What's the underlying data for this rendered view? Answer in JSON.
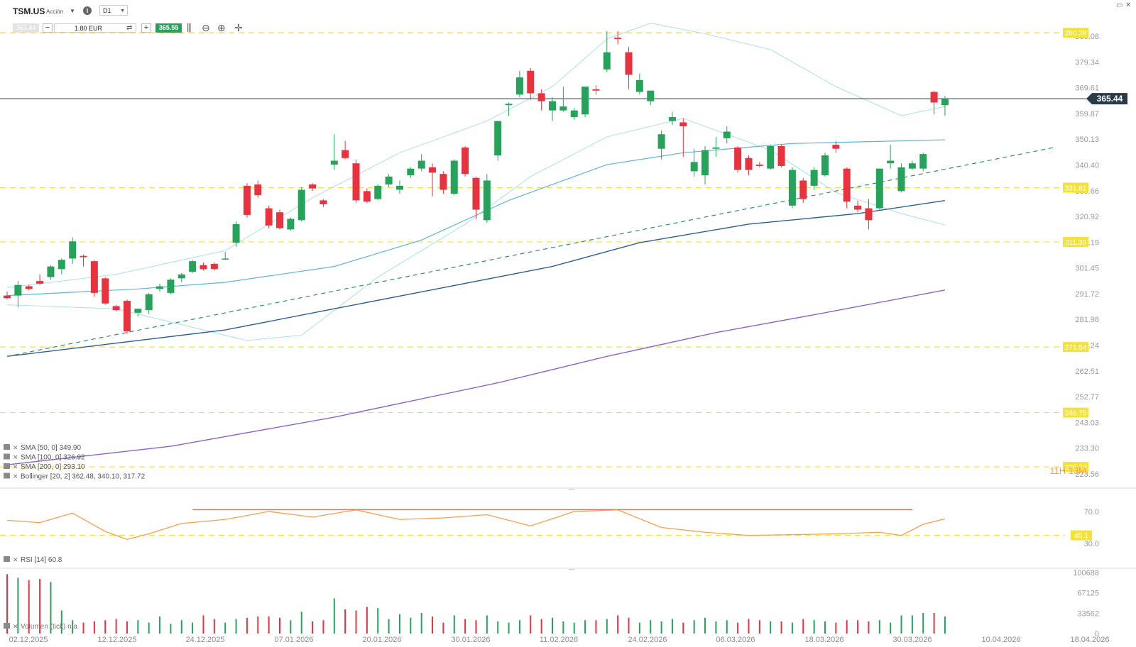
{
  "header": {
    "symbol": "TSM.US",
    "symbol_type": "Acción",
    "timeframe": "D1",
    "sell_price": "363.44",
    "quantity": "1.80 EUR",
    "buy_price": "365.55"
  },
  "icons": [
    "dropdown-caret-icon",
    "info-icon",
    "swap-icon",
    "candle-type-icon",
    "zoom-out-icon",
    "zoom-in-icon",
    "crosshair-icon",
    "minimize-icon",
    "close-icon"
  ],
  "colors": {
    "up": "#26a35a",
    "down": "#e8333f",
    "sma50": "#5fb3dd",
    "sma100": "#2f5f92",
    "sma200": "#8a63c8",
    "bollinger": "#a9e0e7",
    "rsi": "#f6a04d",
    "support": "#f2e23a",
    "trendline": "#2f8f63",
    "current_line": "#1f3a4a"
  },
  "chart_data": {
    "type": "candlestick",
    "ylim": [
      223.56,
      398.0
    ],
    "price_axis_ticks": [
      "389.08",
      "379.34",
      "369.61",
      "359.87",
      "350.13",
      "340.40",
      "330.66",
      "320.92",
      "311.19",
      "301.45",
      "291.72",
      "281.98",
      "272.24",
      "262.51",
      "252.77",
      "243.03",
      "233.30",
      "223.56"
    ],
    "date_labels": [
      "02.12.2025",
      "12.12.2025",
      "24.12.2025",
      "07.01.2026",
      "20.01.2026",
      "30.01.2026",
      "11.02.2026",
      "24.02.2026",
      "06.03.2026",
      "18.03.2026",
      "30.03.2026",
      "10.04.2026",
      "18.04.2026"
    ],
    "current_price": "365.44",
    "horizontal_levels": [
      390.38,
      331.81,
      311.3,
      271.54,
      246.75,
      226.23
    ],
    "horizontal_level_labels": [
      "390.38",
      "331.81",
      "311.30",
      "271.54",
      "246.75",
      "226.23"
    ],
    "countdown": "11H 13M",
    "candles": [
      [
        291.0,
        292.5,
        289.5,
        290.0
      ],
      [
        291.0,
        296.5,
        286.5,
        295.0
      ],
      [
        294.5,
        295.0,
        293.0,
        293.5
      ],
      [
        296.5,
        299.0,
        295.0,
        295.5
      ],
      [
        298.0,
        302.5,
        297.0,
        302.0
      ],
      [
        301.0,
        305.0,
        299.0,
        304.5
      ],
      [
        305.0,
        313.0,
        303.0,
        311.5
      ],
      [
        306.0,
        306.5,
        302.0,
        305.5
      ],
      [
        304.0,
        304.5,
        290.5,
        292.0
      ],
      [
        297.5,
        298.0,
        287.5,
        288.0
      ],
      [
        287.0,
        287.5,
        285.0,
        285.5
      ],
      [
        289.0,
        289.5,
        276.5,
        277.5
      ],
      [
        284.5,
        286.0,
        283.0,
        286.0
      ],
      [
        285.5,
        292.0,
        284.0,
        291.5
      ],
      [
        293.5,
        295.5,
        292.5,
        294.5
      ],
      [
        292.0,
        297.5,
        291.5,
        297.0
      ],
      [
        297.5,
        299.5,
        296.0,
        299.0
      ],
      [
        300.0,
        304.5,
        299.5,
        304.0
      ],
      [
        302.5,
        303.5,
        300.5,
        301.0
      ],
      [
        303.0,
        303.5,
        300.5,
        301.0
      ],
      [
        305.0,
        307.5,
        304.5,
        305.0
      ],
      [
        311.0,
        319.0,
        309.5,
        318.0
      ],
      [
        332.5,
        333.5,
        320.5,
        321.5
      ],
      [
        333.0,
        334.5,
        328.0,
        329.0
      ],
      [
        324.0,
        325.0,
        316.5,
        317.5
      ],
      [
        322.5,
        323.5,
        316.0,
        316.5
      ],
      [
        316.0,
        320.5,
        315.5,
        320.0
      ],
      [
        319.5,
        332.0,
        319.0,
        331.0
      ],
      [
        333.0,
        333.5,
        330.5,
        331.5
      ],
      [
        327.0,
        327.5,
        324.5,
        325.5
      ],
      [
        340.5,
        352.0,
        338.5,
        342.0
      ],
      [
        346.0,
        349.5,
        342.5,
        343.0
      ],
      [
        341.0,
        342.5,
        326.0,
        327.0
      ],
      [
        330.5,
        331.5,
        326.0,
        326.5
      ],
      [
        327.5,
        333.0,
        327.0,
        332.5
      ],
      [
        333.0,
        337.0,
        332.0,
        336.0
      ],
      [
        331.0,
        334.5,
        329.5,
        332.5
      ],
      [
        336.5,
        339.5,
        335.5,
        339.0
      ],
      [
        339.0,
        344.5,
        338.0,
        342.0
      ],
      [
        339.5,
        341.0,
        328.5,
        337.5
      ],
      [
        337.0,
        338.0,
        329.5,
        331.0
      ],
      [
        329.5,
        342.5,
        329.0,
        342.0
      ],
      [
        347.0,
        347.5,
        336.0,
        337.0
      ],
      [
        335.5,
        336.0,
        320.0,
        323.5
      ],
      [
        319.5,
        337.0,
        318.5,
        334.5
      ],
      [
        344.0,
        356.5,
        342.0,
        357.0
      ],
      [
        363.0,
        364.0,
        359.0,
        363.5
      ],
      [
        367.0,
        376.0,
        366.0,
        373.5
      ],
      [
        376.0,
        377.0,
        365.0,
        367.5
      ],
      [
        367.5,
        369.0,
        361.0,
        364.5
      ],
      [
        361.0,
        366.0,
        357.0,
        364.5
      ],
      [
        361.0,
        370.0,
        360.5,
        362.5
      ],
      [
        358.5,
        362.0,
        357.5,
        361.0
      ],
      [
        359.5,
        370.0,
        358.5,
        370.0
      ],
      [
        369.0,
        370.5,
        367.0,
        368.5
      ],
      [
        376.5,
        391.0,
        375.5,
        383.0
      ],
      [
        388.5,
        391.0,
        386.0,
        388.0
      ],
      [
        383.0,
        385.0,
        369.0,
        374.5
      ],
      [
        368.0,
        375.0,
        367.0,
        372.5
      ],
      [
        364.5,
        368.5,
        363.0,
        368.5
      ],
      [
        346.5,
        353.5,
        342.5,
        352.0
      ],
      [
        357.0,
        360.5,
        355.5,
        358.5
      ],
      [
        356.5,
        358.0,
        343.5,
        355.0
      ],
      [
        338.0,
        346.5,
        336.0,
        341.5
      ],
      [
        336.5,
        347.5,
        333.0,
        346.0
      ],
      [
        346.5,
        351.0,
        343.5,
        347.0
      ],
      [
        350.5,
        355.0,
        348.5,
        353.0
      ],
      [
        347.0,
        347.5,
        337.5,
        338.5
      ],
      [
        343.0,
        344.0,
        336.5,
        338.5
      ],
      [
        340.5,
        341.5,
        339.5,
        340.0
      ],
      [
        339.0,
        348.0,
        338.5,
        347.5
      ],
      [
        347.5,
        348.0,
        339.5,
        340.0
      ],
      [
        325.0,
        339.5,
        324.0,
        338.5
      ],
      [
        334.5,
        335.5,
        326.0,
        327.5
      ],
      [
        332.5,
        339.5,
        331.0,
        338.5
      ],
      [
        336.5,
        345.0,
        336.0,
        344.0
      ],
      [
        348.0,
        349.5,
        345.0,
        346.5
      ],
      [
        339.0,
        339.5,
        324.0,
        326.5
      ],
      [
        325.0,
        327.0,
        322.5,
        323.5
      ],
      [
        324.0,
        327.5,
        316.0,
        319.5
      ],
      [
        324.0,
        339.0,
        323.5,
        339.0
      ],
      [
        341.0,
        348.0,
        339.0,
        342.0
      ],
      [
        330.5,
        341.0,
        330.0,
        339.5
      ],
      [
        339.0,
        342.0,
        338.5,
        341.0
      ],
      [
        339.0,
        345.0,
        338.0,
        344.5
      ],
      [
        368.0,
        368.5,
        359.5,
        364.0
      ],
      [
        363.0,
        366.5,
        359.0,
        365.44
      ]
    ],
    "sma50": {
      "name": "SMA [50, 0]",
      "last": "349.90",
      "values": [
        [
          0,
          291.0
        ],
        [
          12,
          293.5
        ],
        [
          20,
          296.0
        ],
        [
          30,
          302.0
        ],
        [
          38,
          312.0
        ],
        [
          46,
          327.0
        ],
        [
          55,
          340.5
        ],
        [
          62,
          345.0
        ],
        [
          72,
          348.5
        ],
        [
          86,
          349.9
        ]
      ]
    },
    "sma100": {
      "name": "SMA [100, 0]",
      "last": "326.92",
      "values": [
        [
          0,
          268.0
        ],
        [
          10,
          273.0
        ],
        [
          20,
          278.0
        ],
        [
          30,
          286.0
        ],
        [
          40,
          294.0
        ],
        [
          50,
          302.0
        ],
        [
          58,
          311.0
        ],
        [
          68,
          318.0
        ],
        [
          78,
          322.0
        ],
        [
          86,
          326.92
        ]
      ]
    },
    "sma200": {
      "name": "SMA [200, 0]",
      "last": "293.10",
      "values": [
        [
          0,
          227.0
        ],
        [
          15,
          234.0
        ],
        [
          30,
          245.0
        ],
        [
          45,
          258.0
        ],
        [
          55,
          268.0
        ],
        [
          65,
          277.0
        ],
        [
          75,
          284.5
        ],
        [
          86,
          293.1
        ]
      ]
    },
    "bollinger": {
      "name": "Bollinger [20, 2]",
      "values_text": "362.48, 340.10, 317.72",
      "upper": [
        [
          0,
          294.0
        ],
        [
          10,
          299.0
        ],
        [
          20,
          308.0
        ],
        [
          28,
          328.0
        ],
        [
          36,
          345.0
        ],
        [
          44,
          357.0
        ],
        [
          50,
          370.0
        ],
        [
          55,
          388.0
        ],
        [
          59,
          394.0
        ],
        [
          64,
          390.0
        ],
        [
          70,
          384.0
        ],
        [
          76,
          370.0
        ],
        [
          82,
          359.0
        ],
        [
          86,
          362.48
        ]
      ],
      "lower": [
        [
          0,
          287.5
        ],
        [
          10,
          286.0
        ],
        [
          16,
          280.0
        ],
        [
          22,
          274.0
        ],
        [
          27,
          276.0
        ],
        [
          34,
          298.0
        ],
        [
          42,
          318.0
        ],
        [
          48,
          336.0
        ],
        [
          55,
          351.0
        ],
        [
          62,
          358.0
        ],
        [
          70,
          346.0
        ],
        [
          76,
          330.0
        ],
        [
          82,
          322.0
        ],
        [
          86,
          317.72
        ]
      ]
    },
    "trendline": [
      [
        0,
        268.0
      ],
      [
        96,
        347.0
      ]
    ],
    "rsi": {
      "name": "RSI [14]",
      "last": "60.8",
      "axis_labels": [
        "70.0",
        "30.0"
      ],
      "level_label": "40.1",
      "level": 40.1,
      "overbought_line": 72.5,
      "values": [
        [
          0,
          59
        ],
        [
          3,
          56
        ],
        [
          6,
          68
        ],
        [
          9,
          45
        ],
        [
          11,
          35
        ],
        [
          13,
          42
        ],
        [
          16,
          55
        ],
        [
          20,
          60
        ],
        [
          24,
          70
        ],
        [
          28,
          63
        ],
        [
          32,
          72
        ],
        [
          36,
          60
        ],
        [
          40,
          62
        ],
        [
          44,
          66
        ],
        [
          48,
          52
        ],
        [
          52,
          70
        ],
        [
          56,
          72
        ],
        [
          60,
          50
        ],
        [
          64,
          44
        ],
        [
          68,
          40
        ],
        [
          72,
          41
        ],
        [
          76,
          42
        ],
        [
          80,
          44
        ],
        [
          82,
          40
        ],
        [
          84,
          54
        ],
        [
          86,
          60.8
        ]
      ]
    },
    "volume": {
      "name": "Volumen (tick)",
      "value": "n/a",
      "axis_labels": [
        "100688",
        "67125",
        "33562",
        "0"
      ],
      "max": 100688,
      "values": [
        98000,
        92000,
        88000,
        90000,
        85000,
        38000,
        22000,
        18000,
        20000,
        22000,
        24000,
        20000,
        22000,
        18000,
        28000,
        16000,
        22000,
        18000,
        30000,
        24000,
        18000,
        24000,
        26000,
        28000,
        28000,
        26000,
        22000,
        36000,
        20000,
        22000,
        58000,
        40000,
        38000,
        44000,
        42000,
        24000,
        32000,
        26000,
        34000,
        28000,
        18000,
        30000,
        24000,
        22000,
        30000,
        20000,
        18000,
        22000,
        30000,
        24000,
        26000,
        20000,
        18000,
        22000,
        22000,
        24000,
        30000,
        26000,
        18000,
        22000,
        20000,
        24000,
        18000,
        22000,
        26000,
        20000,
        22000,
        18000,
        24000,
        22000,
        20000,
        20000,
        18000,
        24000,
        22000,
        20000,
        18000,
        22000,
        22000,
        20000,
        22000,
        18000,
        30000,
        30000,
        34000,
        34000,
        28000
      ]
    }
  },
  "window_controls": {
    "minimize": "▭",
    "close": "✕"
  }
}
